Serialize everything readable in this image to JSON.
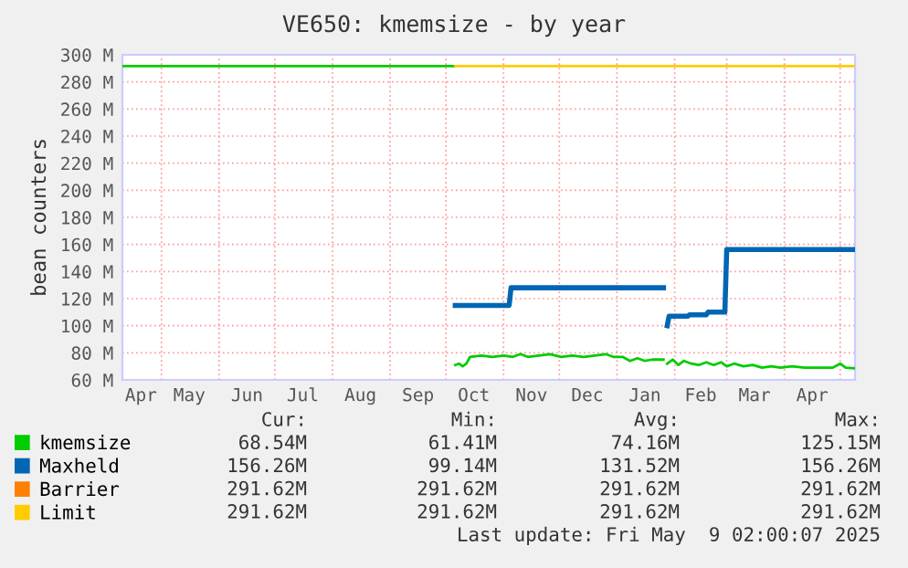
{
  "chart_data": {
    "type": "line",
    "title": "VE650: kmemsize - by year",
    "ylabel": "bean counters",
    "xlim": [
      "2024-04-10",
      "2025-05-09"
    ],
    "xticks": [
      {
        "value": "2024-04-20",
        "label": "Apr"
      },
      {
        "value": "2024-05-01",
        "label": null
      },
      {
        "value": "2024-05-16",
        "label": "May"
      },
      {
        "value": "2024-06-01",
        "label": null
      },
      {
        "value": "2024-06-16",
        "label": "Jun"
      },
      {
        "value": "2024-07-01",
        "label": null
      },
      {
        "value": "2024-07-16",
        "label": "Jul"
      },
      {
        "value": "2024-08-01",
        "label": null
      },
      {
        "value": "2024-08-16",
        "label": "Aug"
      },
      {
        "value": "2024-09-01",
        "label": null
      },
      {
        "value": "2024-09-16",
        "label": "Sep"
      },
      {
        "value": "2024-10-01",
        "label": null
      },
      {
        "value": "2024-10-16",
        "label": "Oct"
      },
      {
        "value": "2024-11-01",
        "label": null
      },
      {
        "value": "2024-11-16",
        "label": "Nov"
      },
      {
        "value": "2024-12-01",
        "label": null
      },
      {
        "value": "2024-12-16",
        "label": "Dec"
      },
      {
        "value": "2025-01-01",
        "label": null
      },
      {
        "value": "2025-01-16",
        "label": "Jan"
      },
      {
        "value": "2025-02-01",
        "label": null
      },
      {
        "value": "2025-02-15",
        "label": "Feb"
      },
      {
        "value": "2025-03-01",
        "label": null
      },
      {
        "value": "2025-03-16",
        "label": "Mar"
      },
      {
        "value": "2025-04-01",
        "label": null
      },
      {
        "value": "2025-04-16",
        "label": "Apr"
      },
      {
        "value": "2025-05-01",
        "label": null
      }
    ],
    "ylim": [
      60,
      300
    ],
    "yticks": [
      {
        "value": 60,
        "label": "60 M"
      },
      {
        "value": 80,
        "label": "80 M"
      },
      {
        "value": 100,
        "label": "100 M"
      },
      {
        "value": 120,
        "label": "120 M"
      },
      {
        "value": 140,
        "label": "140 M"
      },
      {
        "value": 160,
        "label": "160 M"
      },
      {
        "value": 180,
        "label": "180 M"
      },
      {
        "value": 200,
        "label": "200 M"
      },
      {
        "value": 220,
        "label": "220 M"
      },
      {
        "value": 240,
        "label": "240 M"
      },
      {
        "value": 260,
        "label": "260 M"
      },
      {
        "value": 280,
        "label": "280 M"
      },
      {
        "value": 300,
        "label": "300 M"
      }
    ],
    "grid": true,
    "legend": "bottom",
    "series": [
      {
        "color": "#00cc00",
        "x": [
          "2024-04-10",
          "2024-10-06"
        ],
        "values": [
          291.62,
          291.62
        ]
      },
      {
        "name": "kmemsize",
        "color": "#00cc00",
        "x": [
          "2024-10-06",
          "2024-10-08",
          "2024-10-10",
          "2024-10-12",
          "2024-10-14",
          "2024-10-20",
          "2024-10-26",
          "2024-11-01",
          "2024-11-06",
          "2024-11-10",
          "2024-11-14",
          "2024-11-20",
          "2024-11-26",
          "2024-12-02",
          "2024-12-08",
          "2024-12-14",
          "2024-12-20",
          "2024-12-26",
          "2024-12-30",
          "2025-01-04",
          "2025-01-08",
          "2025-01-12",
          "2025-01-16",
          "2025-01-20",
          "2025-01-26",
          "2025-01-27",
          "2025-01-28",
          "2025-01-31",
          "2025-02-03",
          "2025-02-06",
          "2025-02-10",
          "2025-02-14",
          "2025-02-18",
          "2025-02-22",
          "2025-02-26",
          "2025-03-01",
          "2025-03-05",
          "2025-03-10",
          "2025-03-15",
          "2025-03-20",
          "2025-03-25",
          "2025-03-30",
          "2025-04-05",
          "2025-04-12",
          "2025-04-20",
          "2025-04-27",
          "2025-05-01",
          "2025-05-04",
          "2025-05-09"
        ],
        "values": [
          71,
          72,
          70,
          72,
          77,
          78,
          77,
          78,
          77,
          79,
          77,
          78,
          79,
          77,
          78,
          77,
          78,
          79,
          77,
          77,
          74,
          76,
          74,
          75,
          75,
          null,
          72,
          75,
          71,
          74,
          72,
          71,
          73,
          71,
          73,
          70,
          72,
          70,
          71,
          69,
          70,
          69,
          70,
          69,
          69,
          69,
          72,
          69,
          68.54
        ]
      },
      {
        "name": "Maxheld",
        "color": "#0066b3",
        "x": [
          "2024-10-06",
          "2024-11-04",
          "2024-11-05",
          "2025-01-26",
          "2025-01-27",
          "2025-01-28",
          "2025-01-29",
          "2025-02-08",
          "2025-02-09",
          "2025-02-18",
          "2025-02-19",
          "2025-02-28",
          "2025-03-01",
          "2025-05-09"
        ],
        "values": [
          115,
          115,
          128,
          128,
          null,
          100,
          107,
          107,
          108,
          108,
          110,
          110,
          156.26,
          156.26
        ]
      },
      {
        "name": "Barrier",
        "color": "#ff8000"
      },
      {
        "name": "Limit",
        "color": "#ffcc00",
        "x": [
          "2024-10-06",
          "2025-05-09"
        ],
        "values": [
          291.62,
          291.62
        ]
      }
    ],
    "annotations": [
      "Cur:",
      "Min:",
      "Avg:",
      "Max:",
      "68.54M",
      "61.41M",
      "74.16M",
      "125.15M",
      "156.26M",
      "99.14M",
      "131.52M",
      "156.26M",
      "291.62M",
      "291.62M",
      "291.62M",
      "291.62M",
      "291.62M",
      "291.62M",
      "291.62M",
      "291.62M",
      "Last update: Fri May  9 02:00:07 2025"
    ]
  }
}
